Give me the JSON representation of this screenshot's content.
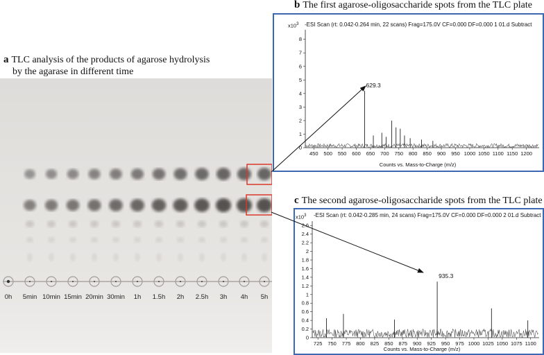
{
  "panel_a": {
    "letter": "a",
    "title_line1": "TLC analysis of the products of agarose hydrolysis",
    "title_line2": "by the agarase in different time",
    "lanes": [
      "0h",
      "5min",
      "10min",
      "15min",
      "20min",
      "30min",
      "1h",
      "1.5h",
      "2h",
      "2.5h",
      "3h",
      "4h",
      "5h"
    ]
  },
  "panel_b": {
    "letter": "b",
    "title": "The first agarose-oligosaccharide spots from the TLC plate",
    "header": "-ESI Scan (rt: 0.042-0.264 min, 22 scans) Frag=175.0V CF=0.000 DF=0.000 1   01.d  Subtract",
    "y_multiplier": "x10",
    "y_exponent": "3",
    "y_ticks": [
      "8",
      "7",
      "6",
      "5",
      "4",
      "3",
      "2",
      "1",
      "0"
    ],
    "x_ticks": [
      "450",
      "500",
      "550",
      "600",
      "650",
      "700",
      "750",
      "800",
      "850",
      "900",
      "950",
      "1000",
      "1050",
      "1100",
      "1150",
      "1200"
    ],
    "x_axis_title": "Counts vs. Mass-to-Charge (m/z)",
    "peak_label": "629.3"
  },
  "panel_c": {
    "letter": "c",
    "title": "The second agarose-oligosaccharide spots from the TLC plate",
    "header": "-ESI Scan (rt: 0.042-0.285 min, 24 scans) Frag=175.0V CF=0.000 DF=0.000 2   01.d  Subtract",
    "y_multiplier": "x10",
    "y_exponent": "3",
    "y_ticks": [
      "2.6",
      "2.4",
      "2.2",
      "2",
      "1.8",
      "1.6",
      "1.4",
      "1.2",
      "1",
      "0.8",
      "0.6",
      "0.4",
      "0.2",
      "0"
    ],
    "x_ticks": [
      "725",
      "750",
      "775",
      "800",
      "825",
      "850",
      "875",
      "900",
      "925",
      "950",
      "975",
      "1000",
      "1025",
      "1050",
      "1075",
      "1100"
    ],
    "x_axis_title": "Counts vs. Mass-to-Charge (m/z)",
    "peak_label": "935.3"
  },
  "colors": {
    "frame_border": "#3b67b3",
    "highlight_box": "#d9382c",
    "spectrum_line": "#222222"
  },
  "chart_data": [
    {
      "type": "line",
      "title": "The first agarose-oligosaccharide spots from the TLC plate",
      "xlabel": "Counts vs. Mass-to-Charge (m/z)",
      "ylabel": "",
      "xlim": [
        420,
        1245
      ],
      "ylim": [
        0,
        8.7
      ],
      "annotations": [
        {
          "text": "629.3",
          "x": 629.3,
          "y": 4.2
        }
      ],
      "peaks": [
        {
          "x": 629.3,
          "y": 4.2
        },
        {
          "x": 660,
          "y": 0.9
        },
        {
          "x": 690,
          "y": 1.1
        },
        {
          "x": 705,
          "y": 0.8
        },
        {
          "x": 725,
          "y": 2.0
        },
        {
          "x": 740,
          "y": 1.5
        },
        {
          "x": 755,
          "y": 1.4
        },
        {
          "x": 770,
          "y": 0.9
        },
        {
          "x": 790,
          "y": 0.7
        },
        {
          "x": 830,
          "y": 0.6
        },
        {
          "x": 870,
          "y": 0.5
        }
      ],
      "baseline": 0.3
    },
    {
      "type": "line",
      "title": "The second agarose-oligosaccharide spots from the TLC plate",
      "xlabel": "Counts vs. Mass-to-Charge (m/z)",
      "ylabel": "",
      "xlim": [
        715,
        1115
      ],
      "ylim": [
        0,
        2.7
      ],
      "annotations": [
        {
          "text": "935.3",
          "x": 935.3,
          "y": 1.3
        }
      ],
      "peaks": [
        {
          "x": 935.3,
          "y": 1.3
        },
        {
          "x": 1031,
          "y": 0.68
        },
        {
          "x": 770,
          "y": 0.55
        },
        {
          "x": 740,
          "y": 0.45
        },
        {
          "x": 860,
          "y": 0.42
        },
        {
          "x": 1095,
          "y": 0.4
        }
      ],
      "baseline": 0.2
    }
  ]
}
